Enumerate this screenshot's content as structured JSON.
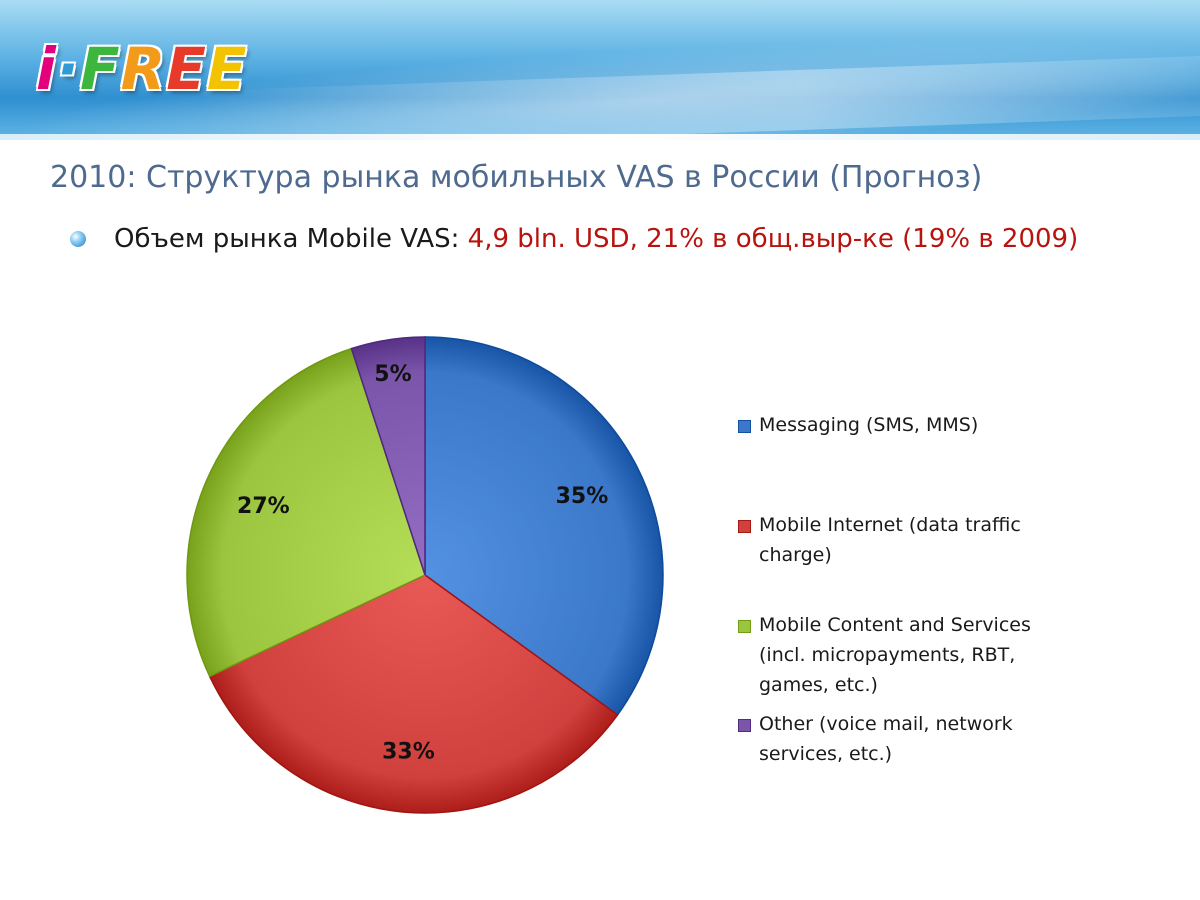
{
  "slide": {
    "title": "2010: Структура рынка мобильных VAS в России (Прогноз)",
    "bullet_prefix": "Объем рынка Mobile VAS: ",
    "bullet_highlight": "4,9 bln. USD, 21% в общ.выр-ке (19%  в 2009)"
  },
  "logo": {
    "text_parts": [
      {
        "text": "i",
        "color": "#e4007c"
      },
      {
        "text": "·",
        "color": "#2e9bd6"
      },
      {
        "text": "F",
        "color": "#3cb63c"
      },
      {
        "text": "R",
        "color": "#f29b1b"
      },
      {
        "text": "E",
        "color": "#e83a2a"
      },
      {
        "text": "E",
        "color": "#f3c300"
      }
    ]
  },
  "chart_data": {
    "type": "pie",
    "title": "",
    "slices": [
      {
        "name": "Messaging (SMS, MMS)",
        "value": 35,
        "label": "35%",
        "color": "#3b78c9"
      },
      {
        "name": "Mobile Internet (data traffic charge)",
        "value": 33,
        "label": "33%",
        "color": "#d0403d"
      },
      {
        "name": "Mobile Content and Services (incl. micropayments, RBT, games, etc.)",
        "value": 27,
        "label": "27%",
        "color": "#9cc53f"
      },
      {
        "name": "Other (voice mail, network services, etc.)",
        "value": 5,
        "label": "5%",
        "color": "#7b55aa"
      }
    ],
    "legend": {
      "position": "right",
      "entries": [
        {
          "lines": [
            "Messaging (SMS, MMS)"
          ],
          "color": "#3b78c9"
        },
        {
          "lines": [
            "Mobile Internet (data traffic",
            "charge)"
          ],
          "color": "#d0403d"
        },
        {
          "lines": [
            "Mobile Content and Services",
            "(incl. micropayments, RBT,",
            "games, etc.)"
          ],
          "color": "#9cc53f"
        },
        {
          "lines": [
            "Other (voice mail, network",
            "services, etc.)"
          ],
          "color": "#7b55aa"
        }
      ]
    }
  }
}
